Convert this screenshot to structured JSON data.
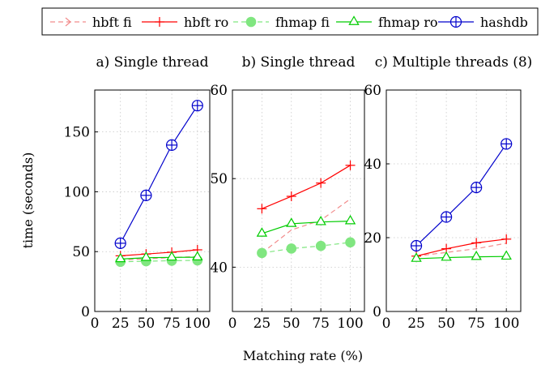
{
  "chart_data": {
    "type": "line",
    "xlabel": "Matching rate (%)",
    "ylabel": "time (seconds)",
    "legend": {
      "placement": "top",
      "entries": [
        {
          "name": "hbft fi",
          "color": "#f28c8c",
          "dash": "dashed",
          "marker": "arrow"
        },
        {
          "name": "hbft ro",
          "color": "#ff0000",
          "dash": "solid",
          "marker": "plus"
        },
        {
          "name": "fhmap fi",
          "color": "#80e680",
          "dash": "dashed",
          "marker": "filled-circle"
        },
        {
          "name": "fhmap ro",
          "color": "#00cc00",
          "dash": "solid",
          "marker": "triangle"
        },
        {
          "name": "hashdb",
          "color": "#0000cc",
          "dash": "solid",
          "marker": "circle-plus"
        }
      ]
    },
    "panels": [
      {
        "title": "a) Single thread",
        "x": [
          25,
          50,
          75,
          100
        ],
        "xlim": [
          0,
          112
        ],
        "xticks": [
          0,
          25,
          50,
          75,
          100
        ],
        "ylim": [
          0,
          185
        ],
        "yticks": [
          0,
          50,
          100,
          150
        ],
        "grid": true,
        "series": [
          {
            "name": "hbft fi",
            "values": [
              43,
              44,
              45,
              46
            ]
          },
          {
            "name": "hbft ro",
            "values": [
              46.5,
              48,
              49.5,
              51.5
            ]
          },
          {
            "name": "fhmap fi",
            "values": [
              41.5,
              42,
              42.4,
              42.7
            ]
          },
          {
            "name": "fhmap ro",
            "values": [
              43.8,
              44.9,
              45.2,
              45.3
            ]
          },
          {
            "name": "hashdb",
            "values": [
              57,
              97,
              139,
              172
            ]
          }
        ]
      },
      {
        "title": "b) Single thread",
        "x": [
          25,
          50,
          75,
          100
        ],
        "xlim": [
          0,
          112
        ],
        "xticks": [
          0,
          25,
          50,
          75,
          100
        ],
        "ylim": [
          35,
          60
        ],
        "yticks": [
          40,
          50,
          60
        ],
        "grid": true,
        "series": [
          {
            "name": "hbft fi",
            "values": [
              41.6,
              44.2,
              45.3,
              47.7
            ]
          },
          {
            "name": "hbft ro",
            "values": [
              46.6,
              48.0,
              49.5,
              51.5
            ]
          },
          {
            "name": "fhmap fi",
            "values": [
              41.6,
              42.1,
              42.4,
              42.8
            ]
          },
          {
            "name": "fhmap ro",
            "values": [
              43.8,
              44.9,
              45.1,
              45.2
            ]
          }
        ]
      },
      {
        "title": "c) Multiple threads (8)",
        "x": [
          25,
          50,
          75,
          100
        ],
        "xlim": [
          0,
          112
        ],
        "xticks": [
          0,
          25,
          50,
          75,
          100
        ],
        "ylim": [
          0,
          60
        ],
        "yticks": [
          0,
          20,
          40,
          60
        ],
        "grid": true,
        "series": [
          {
            "name": "hbft fi",
            "values": [
              15,
              16,
              17,
              18.5
            ]
          },
          {
            "name": "hbft ro",
            "values": [
              15,
              17,
              18.6,
              19.6
            ]
          },
          {
            "name": "fhmap ro",
            "values": [
              14.3,
              14.6,
              14.8,
              14.9
            ]
          },
          {
            "name": "hashdb",
            "values": [
              17.8,
              25.6,
              33.6,
              45.4
            ]
          }
        ]
      }
    ]
  }
}
